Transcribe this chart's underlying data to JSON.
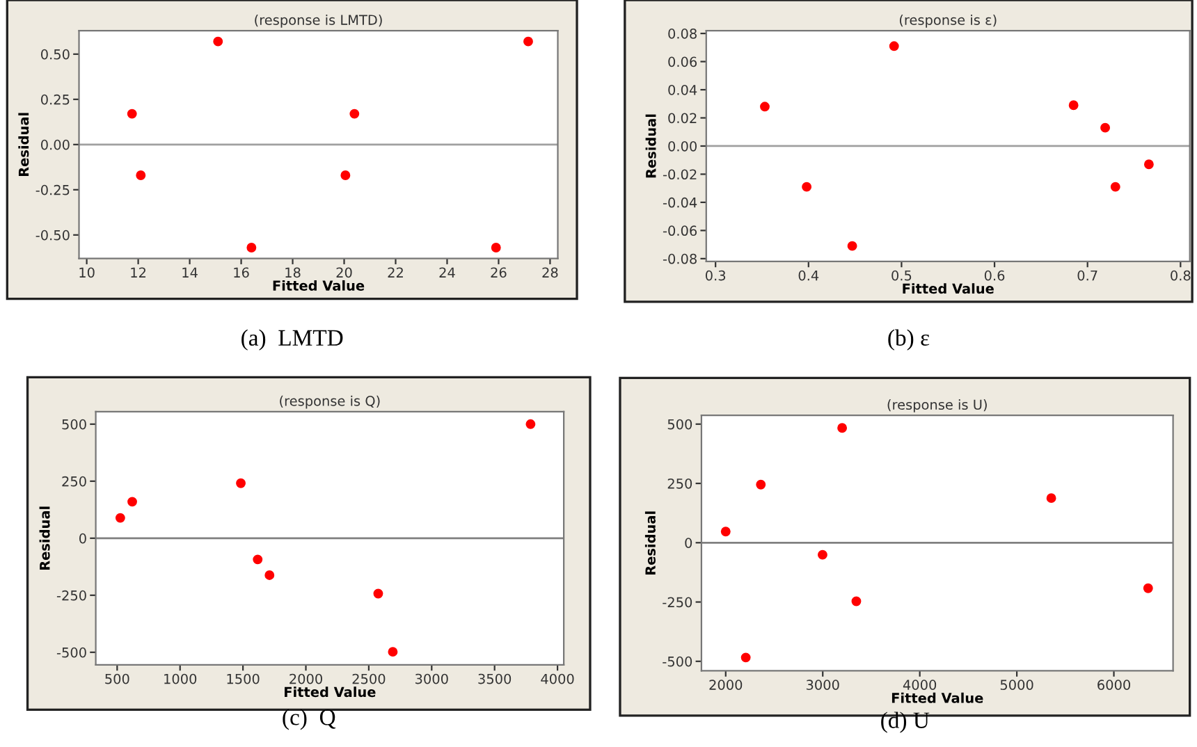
{
  "chart_data": [
    {
      "type": "scatter",
      "title": "(response is LMTD)",
      "xlabel": "Fitted Value",
      "ylabel": "Residual",
      "marker": "circle",
      "grid": false,
      "series": [
        {
          "color": "#ff0000",
          "x": [
            11.76,
            12.1,
            15.1,
            16.4,
            20.05,
            20.4,
            25.9,
            27.15
          ],
          "values": [
            0.17,
            -0.17,
            0.57,
            -0.57,
            -0.17,
            0.17,
            -0.57,
            0.57
          ]
        }
      ],
      "xlim": [
        9.7,
        28.3
      ],
      "xticks": [
        10,
        12,
        14,
        16,
        18,
        20,
        22,
        24,
        26,
        28
      ],
      "ylim": [
        -0.63,
        0.63
      ],
      "yticks": [
        {
          "value": -0.5,
          "label": "-0.50"
        },
        {
          "value": -0.25,
          "label": "-0.25"
        },
        {
          "value": 0,
          "label": "0.00"
        },
        {
          "value": 0.25,
          "label": "0.25"
        },
        {
          "value": 0.5,
          "label": "0.50"
        }
      ],
      "ref_lines": [
        {
          "axis": "y",
          "value": 0,
          "color": "#a0a0a0"
        }
      ],
      "annotations": [
        "(a)  LMTD"
      ]
    },
    {
      "type": "scatter",
      "title": "(response is ε)",
      "xlabel": "Fitted Value",
      "ylabel": "Residual",
      "marker": "circle",
      "grid": false,
      "series": [
        {
          "color": "#ff0000",
          "x": [
            0.353,
            0.398,
            0.447,
            0.492,
            0.685,
            0.719,
            0.73,
            0.766
          ],
          "values": [
            0.028,
            -0.029,
            -0.071,
            0.071,
            0.029,
            0.013,
            -0.029,
            -0.013
          ]
        }
      ],
      "xlim": [
        0.29,
        0.81
      ],
      "xticks": [
        0.3,
        0.4,
        0.5,
        0.6,
        0.7,
        0.8
      ],
      "ylim": [
        -0.082,
        0.082
      ],
      "yticks": [
        {
          "value": -0.08,
          "label": "-0.08"
        },
        {
          "value": -0.06,
          "label": "-0.06"
        },
        {
          "value": -0.04,
          "label": "-0.04"
        },
        {
          "value": -0.02,
          "label": "-0.02"
        },
        {
          "value": 0,
          "label": "0.00"
        },
        {
          "value": 0.02,
          "label": "0.02"
        },
        {
          "value": 0.04,
          "label": "0.04"
        },
        {
          "value": 0.06,
          "label": "0.06"
        },
        {
          "value": 0.08,
          "label": "0.08"
        }
      ],
      "ref_lines": [
        {
          "axis": "y",
          "value": 0,
          "color": "#a0a0a0"
        }
      ],
      "annotations": [
        "(b) ε"
      ]
    },
    {
      "type": "scatter",
      "title": "(response is Q)",
      "xlabel": "Fitted Value",
      "ylabel": "Residual",
      "marker": "circle",
      "grid": false,
      "series": [
        {
          "color": "#ff0000",
          "x": [
            525,
            620,
            1483,
            1617,
            1711,
            2575,
            2691,
            3786
          ],
          "values": [
            89,
            160,
            241,
            -93,
            -162,
            -243,
            -498,
            500
          ]
        }
      ],
      "xlim": [
        330,
        4050
      ],
      "xticks": [
        500,
        1000,
        1500,
        2000,
        2500,
        3000,
        3500,
        4000
      ],
      "ylim": [
        -555,
        555
      ],
      "yticks": [
        -500,
        -250,
        0,
        250,
        500
      ],
      "ref_lines": [
        {
          "axis": "y",
          "value": 0,
          "color": "#808080"
        }
      ],
      "annotations": [
        "(c)  Q"
      ]
    },
    {
      "type": "scatter",
      "title": "(response is U)",
      "xlabel": "Fitted Value",
      "ylabel": "Residual",
      "marker": "circle",
      "grid": false,
      "series": [
        {
          "color": "#ff0000",
          "x": [
            2000,
            2207,
            2362,
            2998,
            3200,
            3346,
            5355,
            6353
          ],
          "values": [
            47,
            -484,
            245,
            -51,
            484,
            -247,
            188,
            -192
          ]
        }
      ],
      "xlim": [
        1750,
        6610
      ],
      "xticks": [
        2000,
        3000,
        4000,
        5000,
        6000
      ],
      "ylim": [
        -540,
        537
      ],
      "yticks": [
        -500,
        -250,
        0,
        250,
        500
      ],
      "ref_lines": [
        {
          "axis": "y",
          "value": 0,
          "color": "#808080"
        }
      ],
      "annotations": [
        "(d) U"
      ]
    }
  ]
}
